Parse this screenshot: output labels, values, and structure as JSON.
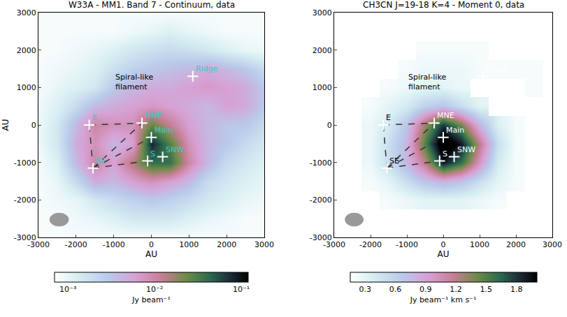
{
  "chart_data": [
    {
      "type": "heatmap",
      "title": "W33A - MM1. Band 7 - Continuum, data",
      "xlabel": "AU",
      "ylabel": "AU",
      "x": [
        -3000,
        -2500,
        -2000,
        -1500,
        -1000,
        -500,
        0,
        500,
        1000,
        1500,
        2000,
        2500,
        3000
      ],
      "y": [
        -3000,
        -2500,
        -2000,
        -1500,
        -1000,
        -500,
        0,
        500,
        1000,
        1500,
        2000,
        2500,
        3000
      ],
      "z": [
        [
          0.0008,
          0.0008,
          0.0008,
          0.0008,
          0.0008,
          0.0008,
          0.0008,
          0.0008,
          0.0008,
          0.0008,
          0.0008,
          0.0008,
          0.0008
        ],
        [
          0.0008,
          0.0008,
          0.0009,
          0.001,
          0.0012,
          0.0015,
          0.0015,
          0.0015,
          0.0012,
          0.001,
          0.0009,
          0.0008,
          0.0008
        ],
        [
          0.0008,
          0.0009,
          0.001,
          0.0015,
          0.002,
          0.0025,
          0.003,
          0.0025,
          0.002,
          0.0015,
          0.0012,
          0.001,
          0.0009
        ],
        [
          0.0008,
          0.001,
          0.002,
          0.005,
          0.004,
          0.006,
          0.008,
          0.006,
          0.004,
          0.002,
          0.0015,
          0.0012,
          0.001
        ],
        [
          0.0008,
          0.0012,
          0.004,
          0.01,
          0.006,
          0.015,
          0.04,
          0.04,
          0.01,
          0.004,
          0.002,
          0.0015,
          0.0012
        ],
        [
          0.0009,
          0.0015,
          0.005,
          0.008,
          0.004,
          0.006,
          0.08,
          0.03,
          0.008,
          0.004,
          0.003,
          0.002,
          0.0015
        ],
        [
          0.0009,
          0.0015,
          0.004,
          0.01,
          0.008,
          0.008,
          0.025,
          0.012,
          0.006,
          0.004,
          0.003,
          0.003,
          0.002
        ],
        [
          0.0009,
          0.0012,
          0.002,
          0.004,
          0.005,
          0.006,
          0.007,
          0.006,
          0.005,
          0.004,
          0.006,
          0.005,
          0.003
        ],
        [
          0.0008,
          0.001,
          0.0012,
          0.0015,
          0.003,
          0.004,
          0.005,
          0.005,
          0.006,
          0.007,
          0.006,
          0.005,
          0.003
        ],
        [
          0.0008,
          0.0009,
          0.001,
          0.0012,
          0.0018,
          0.0025,
          0.003,
          0.0035,
          0.004,
          0.005,
          0.004,
          0.003,
          0.002
        ],
        [
          0.0008,
          0.0008,
          0.0009,
          0.001,
          0.0012,
          0.0015,
          0.0018,
          0.002,
          0.0018,
          0.0015,
          0.0012,
          0.001,
          0.0009
        ],
        [
          0.0008,
          0.0008,
          0.0008,
          0.0008,
          0.0008,
          0.0009,
          0.001,
          0.0012,
          0.001,
          0.0009,
          0.0008,
          0.0008,
          0.0008
        ],
        [
          0.0008,
          0.0008,
          0.0008,
          0.0008,
          0.0008,
          0.0008,
          0.0008,
          0.0008,
          0.0008,
          0.0008,
          0.0008,
          0.0008,
          0.0008
        ]
      ],
      "xlim": [
        -3000,
        3000
      ],
      "ylim": [
        -3000,
        3000
      ],
      "xticks": [
        -3000,
        -2000,
        -1000,
        0,
        1000,
        2000,
        3000
      ],
      "yticks": [
        -3000,
        -2000,
        -1000,
        0,
        1000,
        2000,
        3000
      ],
      "colorbar": {
        "label": "Jy beam⁻¹",
        "log": true,
        "range": [
          0.0007,
          0.12
        ],
        "ticks": [
          {
            "value": 0.001,
            "label": "10⁻³"
          },
          {
            "value": 0.01,
            "label": "10⁻²"
          },
          {
            "value": 0.1,
            "label": "10⁻¹"
          }
        ]
      },
      "sources": [
        {
          "name": "E",
          "x": -1650,
          "y": 0,
          "color": "#3fc9c9"
        },
        {
          "name": "MNE",
          "x": -250,
          "y": 50,
          "color": "#3fc9c9"
        },
        {
          "name": "Main",
          "x": 0,
          "y": -330,
          "color": "#3fc9c9"
        },
        {
          "name": "S",
          "x": -100,
          "y": -960,
          "color": "#3fc9c9"
        },
        {
          "name": "SNW",
          "x": 300,
          "y": -850,
          "color": "#3fc9c9"
        },
        {
          "name": "SE",
          "x": -1550,
          "y": -1150,
          "color": "#3fc9c9"
        },
        {
          "name": "Ridge",
          "x": 1100,
          "y": 1300,
          "color": "#3fc9c9"
        }
      ],
      "links": [
        [
          "E",
          "MNE"
        ],
        [
          "E",
          "SE"
        ],
        [
          "SE",
          "MNE"
        ],
        [
          "SE",
          "Main"
        ],
        [
          "SE",
          "S"
        ]
      ],
      "annotations": [
        {
          "text": "Spiral-like filament",
          "x": -450,
          "y": 1150
        }
      ]
    },
    {
      "type": "heatmap",
      "title": "CH3CN J=19-18 K=4 - Moment 0, data",
      "xlabel": "AU",
      "x": [
        -3000,
        -2500,
        -2000,
        -1500,
        -1000,
        -500,
        0,
        500,
        1000,
        1500,
        2000,
        2500,
        3000
      ],
      "y": [
        -3000,
        -2500,
        -2000,
        -1500,
        -1000,
        -500,
        0,
        500,
        1000,
        1500,
        2000,
        2500,
        3000
      ],
      "z": [
        [
          null,
          null,
          null,
          null,
          null,
          null,
          null,
          null,
          null,
          null,
          null,
          null,
          null
        ],
        [
          null,
          null,
          null,
          null,
          null,
          null,
          null,
          null,
          null,
          null,
          null,
          null,
          null
        ],
        [
          null,
          null,
          null,
          0.2,
          0.25,
          0.3,
          0.3,
          0.3,
          0.25,
          0.2,
          null,
          null,
          null
        ],
        [
          null,
          null,
          0.2,
          0.3,
          0.5,
          0.7,
          0.8,
          0.7,
          0.5,
          0.3,
          0.2,
          null,
          null
        ],
        [
          null,
          null,
          0.25,
          0.5,
          0.8,
          1.2,
          1.9,
          1.6,
          1.0,
          0.4,
          0.2,
          null,
          null
        ],
        [
          null,
          null,
          0.25,
          0.5,
          0.8,
          1.5,
          2.2,
          1.9,
          1.2,
          0.5,
          0.2,
          null,
          null
        ],
        [
          null,
          null,
          0.25,
          0.4,
          0.7,
          1.3,
          1.8,
          1.4,
          0.8,
          0.35,
          0.2,
          null,
          null
        ],
        [
          null,
          null,
          0.2,
          0.3,
          0.4,
          0.6,
          0.7,
          0.5,
          0.3,
          null,
          null,
          null,
          null
        ],
        [
          null,
          null,
          null,
          0.2,
          0.25,
          0.3,
          0.3,
          0.25,
          null,
          null,
          null,
          0.2,
          null
        ],
        [
          null,
          null,
          null,
          null,
          0.2,
          0.25,
          0.25,
          0.25,
          0.2,
          0.2,
          0.2,
          0.2,
          null
        ],
        [
          null,
          null,
          null,
          null,
          null,
          0.2,
          0.2,
          0.2,
          0.2,
          null,
          null,
          null,
          null
        ],
        [
          null,
          null,
          null,
          null,
          null,
          null,
          null,
          null,
          null,
          null,
          null,
          null,
          null
        ],
        [
          null,
          null,
          null,
          null,
          null,
          null,
          null,
          null,
          null,
          null,
          null,
          null,
          null
        ]
      ],
      "xlim": [
        -3000,
        3000
      ],
      "ylim": [
        -3000,
        3000
      ],
      "xticks": [
        -3000,
        -2000,
        -1000,
        0,
        1000,
        2000,
        3000
      ],
      "yticks": [
        -3000,
        -2000,
        -1000,
        0,
        1000,
        2000,
        3000
      ],
      "colorbar": {
        "label": "Jy beam⁻¹ km s⁻¹",
        "log": false,
        "range": [
          0.15,
          2.0
        ],
        "ticks": [
          0.3,
          0.6,
          0.9,
          1.2,
          1.5,
          1.8
        ]
      },
      "sources": [
        {
          "name": "E",
          "x": -1650,
          "y": 0,
          "color": "#000000"
        },
        {
          "name": "MNE",
          "x": -250,
          "y": 50,
          "color": "#ffffff"
        },
        {
          "name": "Main",
          "x": 0,
          "y": -330,
          "color": "#ffffff"
        },
        {
          "name": "S",
          "x": -100,
          "y": -960,
          "color": "#ffffff"
        },
        {
          "name": "SNW",
          "x": 300,
          "y": -850,
          "color": "#ffffff"
        },
        {
          "name": "SE",
          "x": -1550,
          "y": -1150,
          "color": "#000000"
        },
        {
          "name": "Ridge",
          "x": 1100,
          "y": 1300,
          "color": "#ffffff"
        }
      ],
      "links": [
        [
          "E",
          "MNE"
        ],
        [
          "E",
          "SE"
        ],
        [
          "SE",
          "MNE"
        ],
        [
          "SE",
          "Main"
        ],
        [
          "SE",
          "S"
        ]
      ],
      "annotations": [
        {
          "text": "Spiral-like filament",
          "x": -450,
          "y": 1150
        }
      ]
    }
  ]
}
